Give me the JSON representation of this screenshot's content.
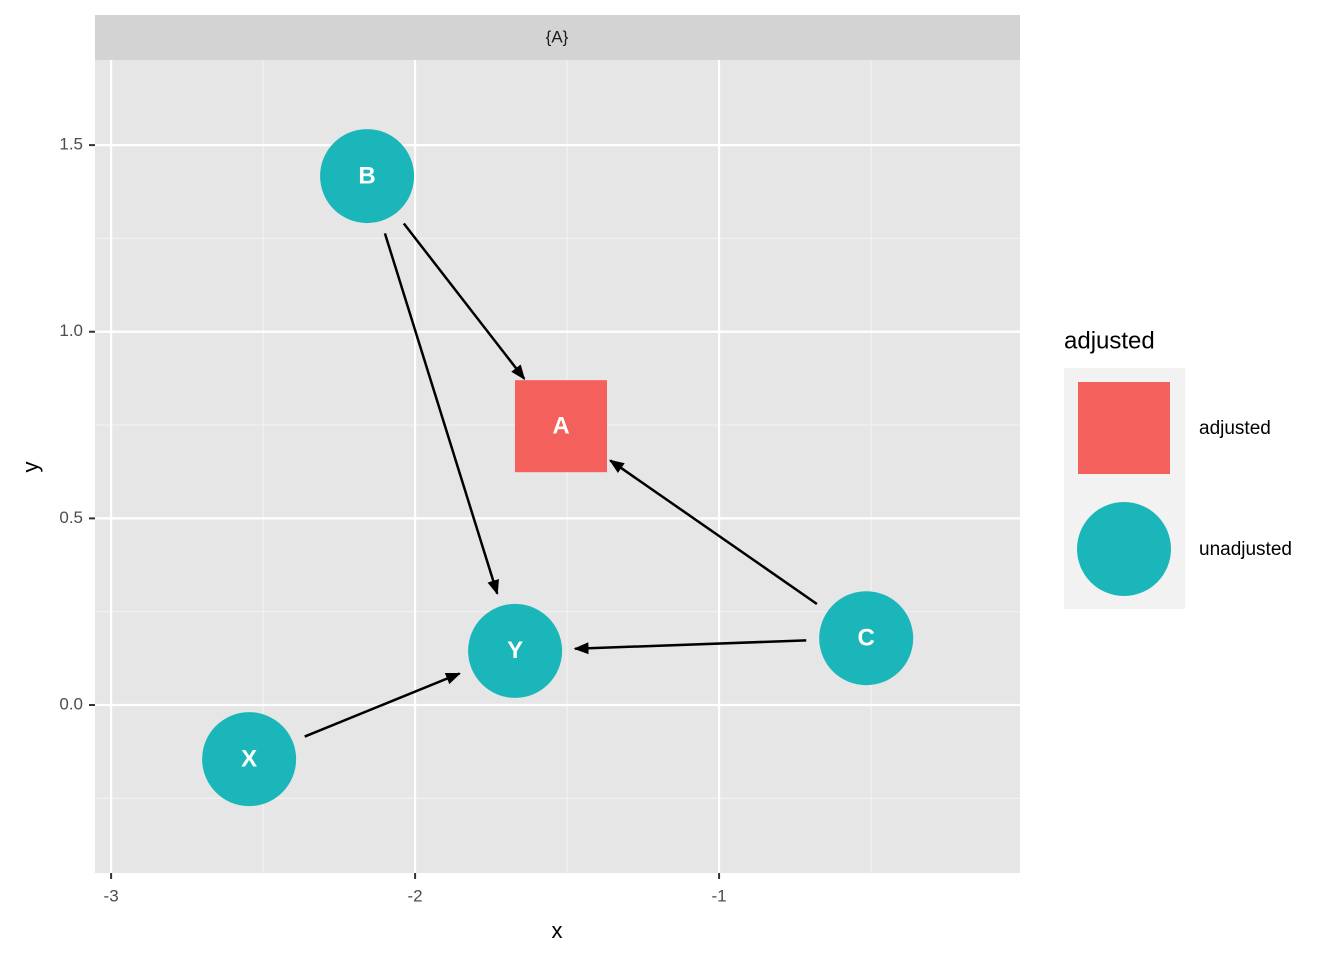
{
  "chart_data": {
    "type": "dag",
    "strip": "{A}",
    "xlabel": "x",
    "ylabel": "y",
    "xlim": [
      -3.053,
      -0.01
    ],
    "ylim": [
      -0.45,
      1.728
    ],
    "xticks": [
      -3,
      -2,
      -1
    ],
    "yticks": [
      {
        "value": 0,
        "label": "0.0"
      },
      {
        "value": 0.5,
        "label": "0.5"
      },
      {
        "value": 1,
        "label": "1.0"
      },
      {
        "value": 1.5,
        "label": "1.5"
      }
    ],
    "grid": true,
    "legend_title": "adjusted",
    "series": [
      {
        "name": "adjusted",
        "color": "#f4605b",
        "shape": "square",
        "labels": [
          "A"
        ],
        "x": [
          -1.52
        ],
        "values": [
          0.747
        ]
      },
      {
        "name": "unadjusted",
        "color": "#1bb6b9",
        "shape": "circle",
        "labels": [
          "B",
          "Y",
          "C",
          "X"
        ],
        "x": [
          -2.158,
          -1.671,
          -0.516,
          -2.546
        ],
        "values": [
          1.417,
          0.145,
          0.179,
          -0.145
        ]
      }
    ],
    "edges": [
      [
        "B",
        "A"
      ],
      [
        "B",
        "Y"
      ],
      [
        "C",
        "A"
      ],
      [
        "C",
        "Y"
      ],
      [
        "X",
        "Y"
      ]
    ]
  }
}
